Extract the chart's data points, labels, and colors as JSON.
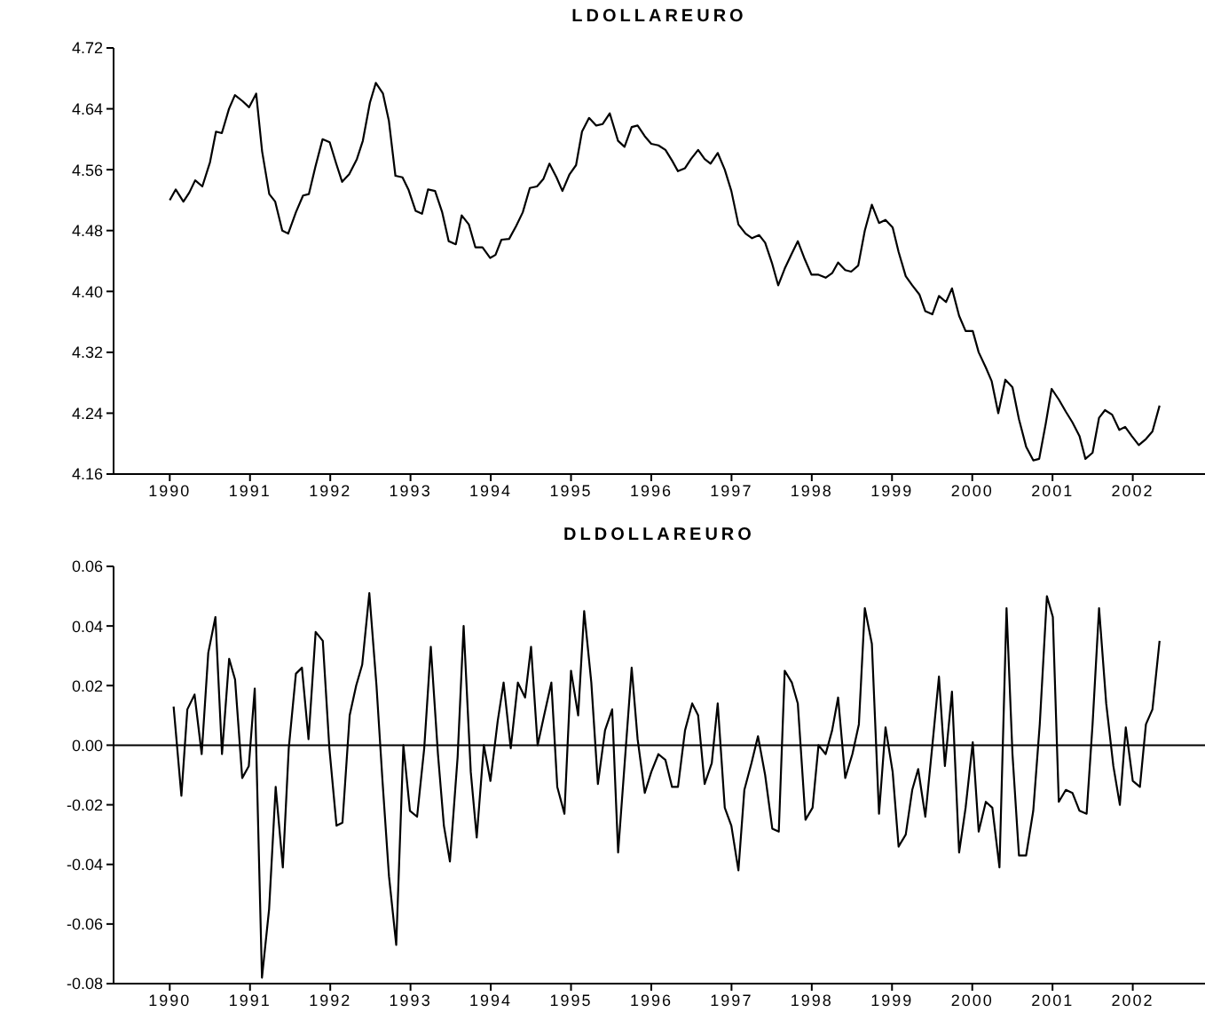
{
  "chart_data": [
    {
      "type": "line",
      "title": "LDOLLAREURO",
      "marker": "none",
      "xlim": [
        1989.3,
        2002.9
      ],
      "xticks": [
        1990,
        1991,
        1992,
        1993,
        1994,
        1995,
        1996,
        1997,
        1998,
        1999,
        2000,
        2001,
        2002
      ],
      "ylim": [
        4.16,
        4.72
      ],
      "yticks": [
        {
          "value": 4.16,
          "label": "4.16"
        },
        {
          "value": 4.24,
          "label": "4.24"
        },
        {
          "value": 4.32,
          "label": "4.32"
        },
        {
          "value": 4.4,
          "label": "4.40"
        },
        {
          "value": 4.48,
          "label": "4.48"
        },
        {
          "value": 4.56,
          "label": "4.56"
        },
        {
          "value": 4.64,
          "label": "4.64"
        },
        {
          "value": 4.72,
          "label": "4.72"
        }
      ],
      "series": [
        {
          "color": "#000000",
          "x": [
            1990.0,
            1990.074,
            1990.17,
            1990.244,
            1990.317,
            1990.406,
            1990.502,
            1990.576,
            1990.649,
            1990.738,
            1990.812,
            1990.908,
            1990.989,
            1991.077,
            1991.151,
            1991.24,
            1991.314,
            1991.402,
            1991.476,
            1991.572,
            1991.661,
            1991.734,
            1991.815,
            1991.904,
            1991.993,
            1992.074,
            1992.148,
            1992.236,
            1992.332,
            1992.406,
            1992.494,
            1992.568,
            1992.657,
            1992.731,
            1992.812,
            1992.9,
            1992.974,
            1993.063,
            1993.144,
            1993.218,
            1993.306,
            1993.395,
            1993.476,
            1993.565,
            1993.638,
            1993.727,
            1993.808,
            1993.897,
            1993.993,
            1994.059,
            1994.133,
            1994.229,
            1994.317,
            1994.399,
            1994.487,
            1994.576,
            1994.657,
            1994.731,
            1994.819,
            1994.893,
            1994.982,
            1995.063,
            1995.137,
            1995.225,
            1995.314,
            1995.395,
            1995.483,
            1995.586,
            1995.667,
            1995.756,
            1995.83,
            1995.919,
            1996.0,
            1996.089,
            1996.177,
            1996.259,
            1996.333,
            1996.421,
            1996.495,
            1996.584,
            1996.665,
            1996.739,
            1996.828,
            1996.916,
            1996.998,
            1997.086,
            1997.175,
            1997.256,
            1997.345,
            1997.419,
            1997.508,
            1997.582,
            1997.663,
            1997.752,
            1997.826,
            1997.914,
            1997.996,
            1998.084,
            1998.173,
            1998.254,
            1998.328,
            1998.417,
            1998.491,
            1998.579,
            1998.661,
            1998.749,
            1998.838,
            1998.919,
            1999.008,
            1999.082,
            1999.171,
            1999.252,
            1999.341,
            1999.415,
            1999.503,
            1999.585,
            1999.673,
            1999.747,
            1999.836,
            1999.917,
            2000.006,
            2000.08,
            2000.169,
            2000.242,
            2000.324,
            2000.412,
            2000.501,
            2000.582,
            2000.671,
            2000.76,
            2000.834,
            2000.915,
            2000.989,
            2001.078,
            2001.166,
            2001.248,
            2001.336,
            2001.41,
            2001.499,
            2001.58,
            2001.654,
            2001.743,
            2001.832,
            2001.905,
            2001.987,
            2002.075,
            2002.164,
            2002.245,
            2002.334
          ],
          "values": [
            4.52,
            4.534,
            4.518,
            4.53,
            4.546,
            4.538,
            4.57,
            4.61,
            4.608,
            4.64,
            4.658,
            4.65,
            4.642,
            4.66,
            4.584,
            4.528,
            4.518,
            4.48,
            4.476,
            4.504,
            4.526,
            4.528,
            4.564,
            4.6,
            4.596,
            4.568,
            4.544,
            4.554,
            4.574,
            4.598,
            4.648,
            4.674,
            4.66,
            4.624,
            4.552,
            4.55,
            4.534,
            4.506,
            4.502,
            4.534,
            4.532,
            4.504,
            4.466,
            4.462,
            4.5,
            4.488,
            4.458,
            4.458,
            4.444,
            4.448,
            4.468,
            4.469,
            4.486,
            4.504,
            4.536,
            4.538,
            4.548,
            4.568,
            4.55,
            4.532,
            4.554,
            4.566,
            4.61,
            4.628,
            4.618,
            4.62,
            4.634,
            4.598,
            4.59,
            4.616,
            4.618,
            4.604,
            4.594,
            4.592,
            4.586,
            4.572,
            4.558,
            4.562,
            4.574,
            4.586,
            4.574,
            4.568,
            4.582,
            4.56,
            4.532,
            4.488,
            4.476,
            4.47,
            4.474,
            4.464,
            4.436,
            4.408,
            4.43,
            4.45,
            4.466,
            4.442,
            4.422,
            4.422,
            4.418,
            4.424,
            4.438,
            4.428,
            4.426,
            4.434,
            4.48,
            4.514,
            4.49,
            4.494,
            4.484,
            4.452,
            4.42,
            4.408,
            4.396,
            4.374,
            4.37,
            4.394,
            4.386,
            4.404,
            4.368,
            4.348,
            4.348,
            4.32,
            4.3,
            4.282,
            4.24,
            4.284,
            4.274,
            4.232,
            4.196,
            4.178,
            4.18,
            4.226,
            4.272,
            4.258,
            4.242,
            4.228,
            4.21,
            4.18,
            4.188,
            4.234,
            4.244,
            4.238,
            4.218,
            4.222,
            4.21,
            4.198,
            4.206,
            4.216,
            4.25
          ]
        }
      ]
    },
    {
      "type": "line",
      "title": "DLDOLLAREURO",
      "marker": "none",
      "xlim": [
        1989.3,
        2002.9
      ],
      "xticks": [
        1990,
        1991,
        1992,
        1993,
        1994,
        1995,
        1996,
        1997,
        1998,
        1999,
        2000,
        2001,
        2002
      ],
      "ylim": [
        -0.08,
        0.06
      ],
      "yticks": [
        {
          "value": -0.08,
          "label": "-0.08"
        },
        {
          "value": -0.06,
          "label": "-0.06"
        },
        {
          "value": -0.04,
          "label": "-0.04"
        },
        {
          "value": -0.02,
          "label": "-0.02"
        },
        {
          "value": 0,
          "label": "0.00"
        },
        {
          "value": 0.02,
          "label": "0.02"
        },
        {
          "value": 0.04,
          "label": "0.04"
        },
        {
          "value": 0.06,
          "label": "0.06"
        }
      ],
      "ref_lines": [
        {
          "axis": "y",
          "value": 0,
          "color": "#000000"
        }
      ],
      "series": [
        {
          "color": "#000000",
          "x": [
            1990.048,
            1990.145,
            1990.219,
            1990.309,
            1990.398,
            1990.48,
            1990.569,
            1990.651,
            1990.74,
            1990.814,
            1990.903,
            1990.985,
            1991.059,
            1991.149,
            1991.238,
            1991.32,
            1991.409,
            1991.483,
            1991.572,
            1991.647,
            1991.729,
            1991.818,
            1991.907,
            1991.989,
            1992.078,
            1992.152,
            1992.242,
            1992.323,
            1992.398,
            1992.487,
            1992.576,
            1992.651,
            1992.732,
            1992.822,
            1992.911,
            1992.993,
            1993.082,
            1993.171,
            1993.253,
            1993.342,
            1993.416,
            1993.491,
            1993.587,
            1993.662,
            1993.751,
            1993.825,
            1993.914,
            1993.996,
            1994.086,
            1994.16,
            1994.249,
            1994.338,
            1994.428,
            1994.502,
            1994.584,
            1994.665,
            1994.755,
            1994.829,
            1994.918,
            1995.0,
            1995.089,
            1995.164,
            1995.253,
            1995.335,
            1995.424,
            1995.513,
            1995.587,
            1995.756,
            1995.83,
            1995.919,
            1996.0,
            1996.089,
            1996.177,
            1996.259,
            1996.333,
            1996.421,
            1996.51,
            1996.584,
            1996.665,
            1996.754,
            1996.828,
            1996.916,
            1996.998,
            1997.086,
            1997.16,
            1997.249,
            1997.33,
            1997.419,
            1997.508,
            1997.589,
            1997.663,
            1997.752,
            1997.826,
            1997.922,
            1998.01,
            1998.084,
            1998.173,
            1998.254,
            1998.328,
            1998.417,
            1998.506,
            1998.587,
            1998.661,
            1998.749,
            1998.838,
            1998.919,
            1999.008,
            1999.082,
            1999.171,
            1999.252,
            1999.326,
            1999.415,
            1999.503,
            1999.585,
            1999.659,
            1999.747,
            1999.836,
            1999.917,
            2000.006,
            2000.08,
            2000.169,
            2000.25,
            2000.339,
            2000.427,
            2000.501,
            2000.582,
            2000.671,
            2000.76,
            2000.841,
            2000.93,
            2001.004,
            2001.078,
            2001.166,
            2001.248,
            2001.336,
            2001.425,
            2001.499,
            2001.58,
            2001.669,
            2001.758,
            2001.839,
            2001.913,
            2002.0,
            2002.089,
            2002.164,
            2002.245,
            2002.334
          ],
          "values": [
            0.013,
            -0.017,
            0.012,
            0.017,
            -0.003,
            0.031,
            0.043,
            -0.003,
            0.029,
            0.022,
            -0.011,
            -0.007,
            0.019,
            -0.078,
            -0.055,
            -0.014,
            -0.041,
            -0.001,
            0.024,
            0.026,
            0.002,
            0.038,
            0.035,
            -0.001,
            -0.027,
            -0.026,
            0.01,
            0.02,
            0.027,
            0.051,
            0.02,
            -0.012,
            -0.044,
            -0.067,
            0.0,
            -0.022,
            -0.024,
            -0.001,
            0.033,
            -0.003,
            -0.027,
            -0.039,
            -0.004,
            0.04,
            -0.009,
            -0.031,
            0.0,
            -0.012,
            0.008,
            0.021,
            -0.001,
            0.021,
            0.016,
            0.033,
            0.0,
            0.01,
            0.021,
            -0.014,
            -0.023,
            0.025,
            0.01,
            0.045,
            0.021,
            -0.013,
            0.005,
            0.012,
            -0.036,
            0.026,
            0.002,
            -0.016,
            -0.009,
            -0.003,
            -0.005,
            -0.014,
            -0.014,
            0.005,
            0.014,
            0.01,
            -0.013,
            -0.006,
            0.014,
            -0.021,
            -0.027,
            -0.042,
            -0.015,
            -0.006,
            0.003,
            -0.01,
            -0.028,
            -0.029,
            0.025,
            0.021,
            0.014,
            -0.025,
            -0.021,
            0.0,
            -0.003,
            0.005,
            0.016,
            -0.011,
            -0.003,
            0.007,
            0.046,
            0.034,
            -0.023,
            0.006,
            -0.009,
            -0.034,
            -0.03,
            -0.015,
            -0.008,
            -0.024,
            0.0,
            0.023,
            -0.007,
            0.018,
            -0.036,
            -0.021,
            0.001,
            -0.029,
            -0.019,
            -0.021,
            -0.041,
            0.046,
            -0.003,
            -0.037,
            -0.037,
            -0.022,
            0.007,
            0.05,
            0.043,
            -0.019,
            -0.015,
            -0.016,
            -0.022,
            -0.023,
            0.007,
            0.046,
            0.014,
            -0.007,
            -0.02,
            0.006,
            -0.012,
            -0.014,
            0.007,
            0.012,
            0.035
          ]
        }
      ]
    }
  ]
}
